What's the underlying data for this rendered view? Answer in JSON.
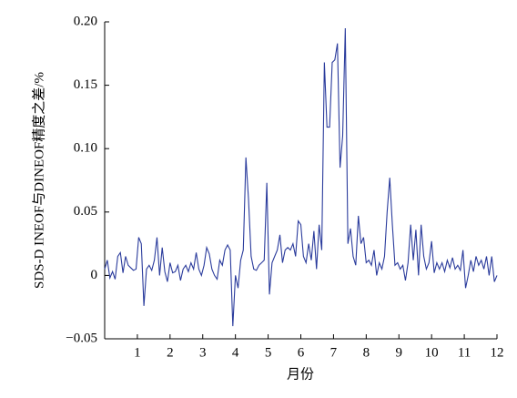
{
  "chart_data": {
    "type": "line",
    "ylabel": "SDS-D INEOF与DINEOF精度之差/%",
    "xlabel": "月份",
    "x": [
      0,
      0.08,
      0.16,
      0.24,
      0.32,
      0.4,
      0.48,
      0.56,
      0.64,
      0.72,
      0.8,
      0.88,
      0.96,
      1.04,
      1.12,
      1.2,
      1.28,
      1.36,
      1.44,
      1.52,
      1.6,
      1.68,
      1.76,
      1.84,
      1.92,
      2,
      2.08,
      2.16,
      2.24,
      2.32,
      2.4,
      2.48,
      2.56,
      2.64,
      2.72,
      2.8,
      2.88,
      2.96,
      3.04,
      3.12,
      3.2,
      3.28,
      3.36,
      3.44,
      3.52,
      3.6,
      3.68,
      3.76,
      3.84,
      3.92,
      4,
      4.08,
      4.16,
      4.24,
      4.32,
      4.4,
      4.48,
      4.56,
      4.64,
      4.72,
      4.8,
      4.88,
      4.96,
      5.04,
      5.12,
      5.2,
      5.28,
      5.36,
      5.44,
      5.52,
      5.6,
      5.68,
      5.76,
      5.84,
      5.92,
      6,
      6.08,
      6.16,
      6.24,
      6.32,
      6.4,
      6.48,
      6.56,
      6.64,
      6.72,
      6.8,
      6.88,
      6.96,
      7.04,
      7.12,
      7.2,
      7.28,
      7.36,
      7.44,
      7.52,
      7.6,
      7.68,
      7.76,
      7.84,
      7.92,
      8,
      8.08,
      8.16,
      8.24,
      8.32,
      8.4,
      8.48,
      8.56,
      8.64,
      8.72,
      8.8,
      8.88,
      8.96,
      9.04,
      9.12,
      9.2,
      9.28,
      9.36,
      9.44,
      9.52,
      9.6,
      9.68,
      9.76,
      9.84,
      9.92,
      10,
      10.08,
      10.16,
      10.24,
      10.32,
      10.4,
      10.48,
      10.56,
      10.64,
      10.72,
      10.8,
      10.88,
      10.96,
      11.04,
      11.12,
      11.2,
      11.28,
      11.36,
      11.44,
      11.52,
      11.6,
      11.68,
      11.76,
      11.84,
      11.92,
      12
    ],
    "series": [
      {
        "color": "#2a3b9c",
        "values": [
          0.005,
          0.012,
          -0.002,
          0.003,
          -0.003,
          0.015,
          0.018,
          0.002,
          0.015,
          0.008,
          0.006,
          0.004,
          0.005,
          0.03,
          0.025,
          -0.024,
          0.005,
          0.008,
          0.004,
          0.012,
          0.03,
          0,
          0.022,
          0.003,
          -0.005,
          0.01,
          0.002,
          0.003,
          0.008,
          -0.004,
          0.005,
          0.008,
          0.003,
          0.01,
          0.005,
          0.018,
          0.005,
          0,
          0.008,
          0.022,
          0.017,
          0.005,
          0,
          -0.003,
          0.012,
          0.008,
          0.02,
          0.024,
          0.02,
          -0.04,
          0,
          -0.01,
          0.012,
          0.02,
          0.093,
          0.06,
          0.015,
          0.005,
          0.004,
          0.008,
          0.01,
          0.012,
          0.073,
          -0.015,
          0.01,
          0.015,
          0.02,
          0.032,
          0.01,
          0.02,
          0.022,
          0.02,
          0.025,
          0.015,
          0.043,
          0.04,
          0.015,
          0.01,
          0.025,
          0.012,
          0.035,
          0.005,
          0.04,
          0.02,
          0.168,
          0.117,
          0.117,
          0.168,
          0.17,
          0.183,
          0.085,
          0.11,
          0.195,
          0.025,
          0.037,
          0.015,
          0.008,
          0.047,
          0.025,
          0.03,
          0.01,
          0.012,
          0.008,
          0.02,
          0,
          0.01,
          0.005,
          0.015,
          0.05,
          0.077,
          0.04,
          0.008,
          0.01,
          0.005,
          0.008,
          -0.004,
          0.01,
          0.04,
          0.012,
          0.036,
          0,
          0.04,
          0.015,
          0.005,
          0.01,
          0.027,
          0.002,
          0.01,
          0.005,
          0.01,
          0.003,
          0.012,
          0.006,
          0.014,
          0.005,
          0.008,
          0.004,
          0.02,
          -0.01,
          0,
          0.012,
          0.003,
          0.015,
          0.008,
          0.012,
          0.005,
          0.015,
          0,
          0.015,
          -0.005,
          0
        ]
      }
    ],
    "xlim": [
      0,
      12
    ],
    "xticks": [
      1,
      2,
      3,
      4,
      5,
      6,
      7,
      8,
      9,
      10,
      11,
      12
    ],
    "ylim": [
      -0.05,
      0.2
    ],
    "yticks": [
      {
        "value": -0.05,
        "label": "−0.05"
      },
      0,
      0.05,
      {
        "value": 0.1,
        "label": "0.10"
      },
      0.15,
      {
        "value": 0.2,
        "label": "0.20"
      }
    ],
    "grid": false
  }
}
